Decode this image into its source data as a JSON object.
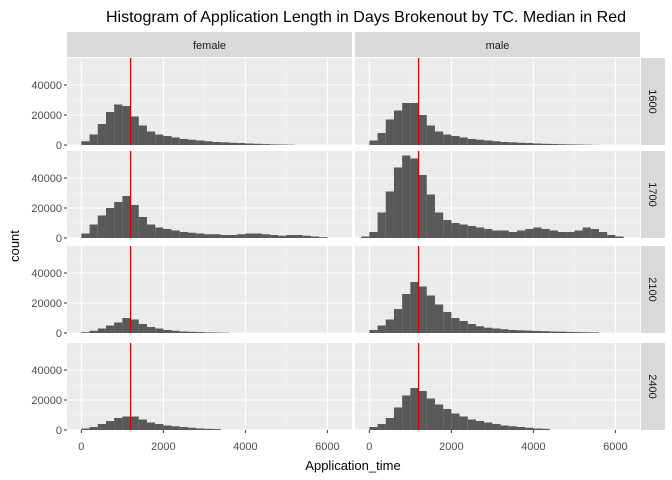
{
  "chart_data": {
    "type": "bar",
    "title": "Histogram of Application Length in Days Brokenout by TC. Median in Red",
    "xlabel": "Application_time",
    "ylabel": "count",
    "xlim": [
      -350,
      6600
    ],
    "ylim": [
      0,
      58000
    ],
    "x_ticks": [
      0,
      2000,
      4000,
      6000
    ],
    "x_tick_labels": [
      "0",
      "2000",
      "4000",
      "6000"
    ],
    "y_ticks": [
      0,
      20000,
      40000
    ],
    "y_tick_labels": [
      "0",
      "20000",
      "40000"
    ],
    "bin_width": 200,
    "median": 1200,
    "median_color": "#cc0000",
    "bar_color": "#595959",
    "panel_bg": "#ebebeb",
    "strip_bg": "#d9d9d9",
    "columns": [
      "female",
      "male"
    ],
    "rows": [
      "1600",
      "1700",
      "2100",
      "2400"
    ],
    "panels": [
      {
        "row": "1600",
        "col": "female",
        "bins_start": 100,
        "counts": [
          2500,
          7000,
          14000,
          22000,
          27000,
          26000,
          19000,
          13000,
          9000,
          7000,
          6000,
          5000,
          4000,
          3500,
          3000,
          2500,
          2000,
          1800,
          1500,
          1300,
          1000,
          800,
          600,
          400,
          300,
          200
        ]
      },
      {
        "row": "1600",
        "col": "male",
        "bins_start": 100,
        "counts": [
          3000,
          8000,
          17000,
          23000,
          28000,
          28000,
          20000,
          13000,
          9000,
          7000,
          6000,
          5000,
          4000,
          3500,
          3000,
          2500,
          2000,
          1800,
          1500,
          1300,
          1000,
          800,
          700,
          500,
          400,
          300,
          200,
          100
        ]
      },
      {
        "row": "1700",
        "col": "female",
        "bins_start": 100,
        "counts": [
          3000,
          9000,
          15000,
          20000,
          24000,
          28000,
          22000,
          14000,
          9000,
          7000,
          6000,
          5000,
          4000,
          3500,
          3000,
          2500,
          2500,
          2000,
          2000,
          2500,
          3000,
          3000,
          2500,
          2000,
          1500,
          2000,
          2000,
          1500,
          1000,
          500
        ]
      },
      {
        "row": "1700",
        "col": "male",
        "bins_start": -100,
        "counts": [
          1000,
          4000,
          17000,
          31000,
          47000,
          55000,
          53000,
          42000,
          29000,
          17000,
          12000,
          10000,
          9000,
          8000,
          7000,
          6000,
          5000,
          5000,
          4000,
          5000,
          6000,
          7000,
          6000,
          5000,
          4000,
          4000,
          5000,
          7000,
          6000,
          4000,
          2000,
          1000
        ]
      },
      {
        "row": "2100",
        "col": "female",
        "bins_start": 100,
        "counts": [
          500,
          1500,
          3000,
          5000,
          7000,
          10000,
          9000,
          6000,
          4000,
          3000,
          2000,
          1500,
          1000,
          800,
          600,
          400,
          300,
          200
        ]
      },
      {
        "row": "2100",
        "col": "male",
        "bins_start": 100,
        "counts": [
          2000,
          5000,
          9000,
          16000,
          26000,
          34000,
          31000,
          25000,
          19000,
          14000,
          10000,
          8000,
          6000,
          4500,
          3500,
          3000,
          2500,
          2000,
          1800,
          1600,
          1400,
          1200,
          1000,
          900,
          700,
          600,
          500,
          400
        ]
      },
      {
        "row": "2400",
        "col": "female",
        "bins_start": 100,
        "counts": [
          1000,
          2000,
          4000,
          6000,
          8000,
          9000,
          9000,
          7000,
          5000,
          4000,
          3000,
          2500,
          2000,
          1500,
          1000,
          800,
          600
        ]
      },
      {
        "row": "2400",
        "col": "male",
        "bins_start": 100,
        "counts": [
          2000,
          4000,
          8000,
          15000,
          23000,
          28000,
          26000,
          21000,
          17000,
          14000,
          11000,
          9000,
          7000,
          6000,
          5000,
          4000,
          3000,
          2500,
          2000,
          1500,
          1000,
          800
        ]
      }
    ]
  }
}
